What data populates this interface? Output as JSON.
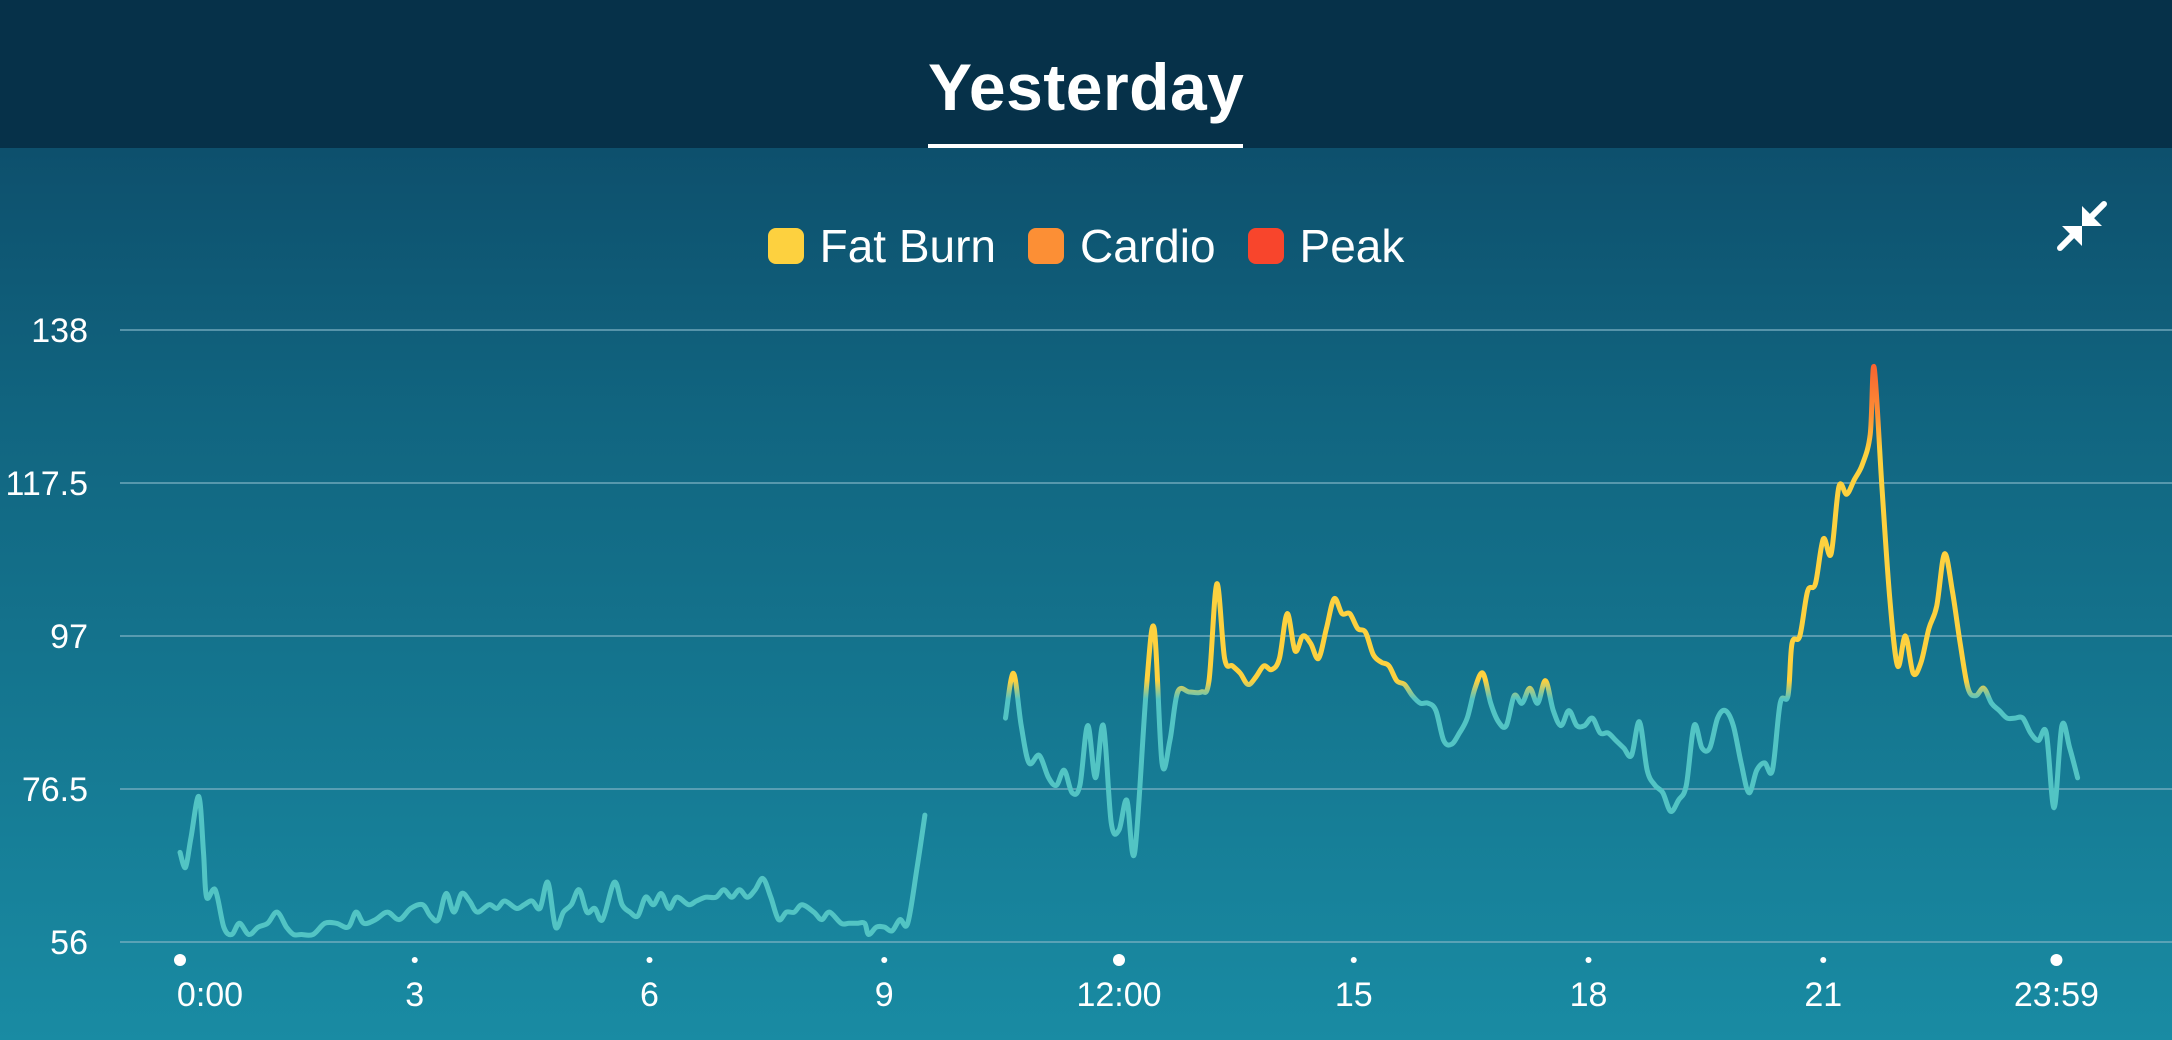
{
  "header": {
    "tab_label": "Yesterday"
  },
  "colors": {
    "resting": "#52c4c4",
    "fat_burn": "#fdd13f",
    "cardio": "#fc8f35",
    "peak": "#f8452c",
    "grid": "#7fb3c4"
  },
  "icons": {
    "collapse": "collapse-arrows-icon"
  },
  "chart_data": {
    "type": "line",
    "legend": [
      {
        "name": "Fat Burn",
        "color": "#fdd13f"
      },
      {
        "name": "Cardio",
        "color": "#fc8f35"
      },
      {
        "name": "Peak",
        "color": "#f8452c"
      }
    ],
    "legend_position": "top-center",
    "ylim": [
      56,
      138
    ],
    "y_ticks": [
      "138",
      "117.5",
      "97",
      "76.5",
      "56"
    ],
    "xlim": [
      0,
      24
    ],
    "x_ticks": [
      {
        "v": 0,
        "label": "0:00",
        "major": true
      },
      {
        "v": 3,
        "label": "3",
        "major": false
      },
      {
        "v": 6,
        "label": "6",
        "major": false
      },
      {
        "v": 9,
        "label": "9",
        "major": false
      },
      {
        "v": 12,
        "label": "12:00",
        "major": true
      },
      {
        "v": 15,
        "label": "15",
        "major": false
      },
      {
        "v": 18,
        "label": "18",
        "major": false
      },
      {
        "v": 21,
        "label": "21",
        "major": false
      },
      {
        "v": 23.98,
        "label": "23:59",
        "major": true
      }
    ],
    "grid": true,
    "fat_burn_threshold": 91,
    "cardio_threshold": 125,
    "series": [
      {
        "points": [
          [
            0,
            68
          ],
          [
            0.07,
            66
          ],
          [
            0.14,
            70
          ],
          [
            0.24,
            75.5
          ],
          [
            0.3,
            68
          ],
          [
            0.34,
            62
          ],
          [
            0.45,
            63
          ],
          [
            0.56,
            58
          ],
          [
            0.66,
            57
          ],
          [
            0.76,
            58.5
          ],
          [
            0.88,
            57
          ],
          [
            1,
            58
          ],
          [
            1.12,
            58.5
          ],
          [
            1.24,
            60
          ],
          [
            1.36,
            58
          ],
          [
            1.45,
            57
          ],
          [
            1.55,
            57
          ],
          [
            1.7,
            57
          ],
          [
            1.85,
            58.5
          ],
          [
            2.0,
            58.5
          ],
          [
            2.15,
            58
          ],
          [
            2.25,
            60
          ],
          [
            2.35,
            58.5
          ],
          [
            2.5,
            59
          ],
          [
            2.65,
            60
          ],
          [
            2.8,
            59
          ],
          [
            2.95,
            60.5
          ],
          [
            3.1,
            61
          ],
          [
            3.2,
            59.5
          ],
          [
            3.3,
            59
          ],
          [
            3.4,
            62.5
          ],
          [
            3.5,
            60
          ],
          [
            3.6,
            62.5
          ],
          [
            3.7,
            61.5
          ],
          [
            3.8,
            60
          ],
          [
            3.95,
            61
          ],
          [
            4.05,
            60.5
          ],
          [
            4.15,
            61.5
          ],
          [
            4.3,
            60.5
          ],
          [
            4.4,
            61
          ],
          [
            4.5,
            61.5
          ],
          [
            4.6,
            60.5
          ],
          [
            4.7,
            64
          ],
          [
            4.8,
            58
          ],
          [
            4.9,
            60
          ],
          [
            5.0,
            61
          ],
          [
            5.1,
            63
          ],
          [
            5.2,
            60
          ],
          [
            5.3,
            60.5
          ],
          [
            5.4,
            59
          ],
          [
            5.55,
            64
          ],
          [
            5.65,
            61
          ],
          [
            5.75,
            60
          ],
          [
            5.85,
            59.5
          ],
          [
            5.95,
            62
          ],
          [
            6.05,
            61
          ],
          [
            6.15,
            62.5
          ],
          [
            6.25,
            60.5
          ],
          [
            6.35,
            62
          ],
          [
            6.5,
            61
          ],
          [
            6.6,
            61.5
          ],
          [
            6.72,
            62
          ],
          [
            6.85,
            62
          ],
          [
            6.95,
            63
          ],
          [
            7.05,
            62
          ],
          [
            7.15,
            63
          ],
          [
            7.25,
            62
          ],
          [
            7.35,
            63
          ],
          [
            7.45,
            64.5
          ],
          [
            7.55,
            62
          ],
          [
            7.65,
            59
          ],
          [
            7.75,
            60
          ],
          [
            7.85,
            60
          ],
          [
            7.95,
            61
          ],
          [
            8.1,
            60
          ],
          [
            8.2,
            59
          ],
          [
            8.3,
            60
          ],
          [
            8.45,
            58.5
          ],
          [
            8.55,
            58.5
          ],
          [
            8.65,
            58.5
          ],
          [
            8.75,
            58.5
          ],
          [
            8.8,
            57
          ],
          [
            8.9,
            58
          ],
          [
            9.0,
            58
          ],
          [
            9.1,
            57.5
          ],
          [
            9.2,
            59
          ],
          [
            9.3,
            58.5
          ],
          [
            9.42,
            66
          ],
          [
            9.52,
            73
          ]
        ]
      },
      {
        "points": [
          [
            10.55,
            86
          ],
          [
            10.65,
            92
          ],
          [
            10.75,
            85
          ],
          [
            10.85,
            80
          ],
          [
            10.98,
            81
          ],
          [
            11.1,
            78
          ],
          [
            11.2,
            77
          ],
          [
            11.3,
            79
          ],
          [
            11.4,
            76
          ],
          [
            11.5,
            77
          ],
          [
            11.6,
            85
          ],
          [
            11.7,
            78
          ],
          [
            11.8,
            85
          ],
          [
            11.9,
            72
          ],
          [
            12.0,
            71
          ],
          [
            12.1,
            75
          ],
          [
            12.2,
            68
          ],
          [
            12.35,
            90
          ],
          [
            12.45,
            98
          ],
          [
            12.55,
            80
          ],
          [
            12.65,
            83
          ],
          [
            12.75,
            89.5
          ],
          [
            12.9,
            89.5
          ],
          [
            13.05,
            89.5
          ],
          [
            13.15,
            91
          ],
          [
            13.25,
            104
          ],
          [
            13.35,
            94
          ],
          [
            13.45,
            93
          ],
          [
            13.55,
            92
          ],
          [
            13.65,
            90.5
          ],
          [
            13.75,
            91.5
          ],
          [
            13.85,
            93
          ],
          [
            13.95,
            92.5
          ],
          [
            14.05,
            94
          ],
          [
            14.15,
            100
          ],
          [
            14.25,
            95
          ],
          [
            14.35,
            97
          ],
          [
            14.45,
            96
          ],
          [
            14.55,
            94
          ],
          [
            14.65,
            98
          ],
          [
            14.75,
            102
          ],
          [
            14.85,
            100
          ],
          [
            14.95,
            100
          ],
          [
            15.05,
            98
          ],
          [
            15.15,
            97.5
          ],
          [
            15.25,
            94.5
          ],
          [
            15.35,
            93.5
          ],
          [
            15.45,
            93
          ],
          [
            15.55,
            91
          ],
          [
            15.65,
            90.5
          ],
          [
            15.75,
            89
          ],
          [
            15.85,
            88
          ],
          [
            15.95,
            88
          ],
          [
            16.05,
            87
          ],
          [
            16.15,
            83
          ],
          [
            16.25,
            82.5
          ],
          [
            16.35,
            84
          ],
          [
            16.45,
            86
          ],
          [
            16.55,
            90
          ],
          [
            16.65,
            92
          ],
          [
            16.75,
            88
          ],
          [
            16.85,
            85.5
          ],
          [
            16.95,
            85
          ],
          [
            17.05,
            89
          ],
          [
            17.15,
            88
          ],
          [
            17.25,
            90
          ],
          [
            17.35,
            88
          ],
          [
            17.45,
            91
          ],
          [
            17.55,
            87
          ],
          [
            17.65,
            85
          ],
          [
            17.75,
            87
          ],
          [
            17.85,
            85
          ],
          [
            17.95,
            85
          ],
          [
            18.05,
            86
          ],
          [
            18.15,
            84
          ],
          [
            18.25,
            84
          ],
          [
            18.35,
            83
          ],
          [
            18.45,
            82
          ],
          [
            18.55,
            81
          ],
          [
            18.65,
            85.5
          ],
          [
            18.75,
            79
          ],
          [
            18.85,
            77
          ],
          [
            18.95,
            76
          ],
          [
            19.05,
            73.5
          ],
          [
            19.15,
            75
          ],
          [
            19.25,
            77
          ],
          [
            19.35,
            85
          ],
          [
            19.45,
            82
          ],
          [
            19.55,
            82
          ],
          [
            19.65,
            86
          ],
          [
            19.75,
            87
          ],
          [
            19.85,
            85
          ],
          [
            19.95,
            80
          ],
          [
            20.05,
            76
          ],
          [
            20.15,
            79
          ],
          [
            20.25,
            80
          ],
          [
            20.35,
            79
          ],
          [
            20.45,
            88
          ],
          [
            20.55,
            89
          ],
          [
            20.6,
            96
          ],
          [
            20.7,
            97
          ],
          [
            20.8,
            103
          ],
          [
            20.9,
            104
          ],
          [
            21.0,
            110
          ],
          [
            21.1,
            108
          ],
          [
            21.2,
            117
          ],
          [
            21.3,
            116
          ],
          [
            21.4,
            118
          ],
          [
            21.5,
            120
          ],
          [
            21.6,
            124
          ],
          [
            21.65,
            133
          ],
          [
            21.75,
            117
          ],
          [
            21.85,
            102
          ],
          [
            21.95,
            93
          ],
          [
            22.05,
            97
          ],
          [
            22.15,
            92
          ],
          [
            22.25,
            93.5
          ],
          [
            22.35,
            98
          ],
          [
            22.45,
            101
          ],
          [
            22.55,
            108
          ],
          [
            22.65,
            103
          ],
          [
            22.75,
            96
          ],
          [
            22.85,
            90
          ],
          [
            22.95,
            89
          ],
          [
            23.05,
            90
          ],
          [
            23.15,
            88
          ],
          [
            23.25,
            87
          ],
          [
            23.35,
            86
          ],
          [
            23.45,
            86
          ],
          [
            23.55,
            86
          ],
          [
            23.65,
            84
          ],
          [
            23.75,
            83
          ],
          [
            23.85,
            84
          ],
          [
            23.95,
            74
          ],
          [
            24.05,
            85
          ],
          [
            24.15,
            82
          ],
          [
            24.25,
            78
          ]
        ]
      }
    ]
  }
}
